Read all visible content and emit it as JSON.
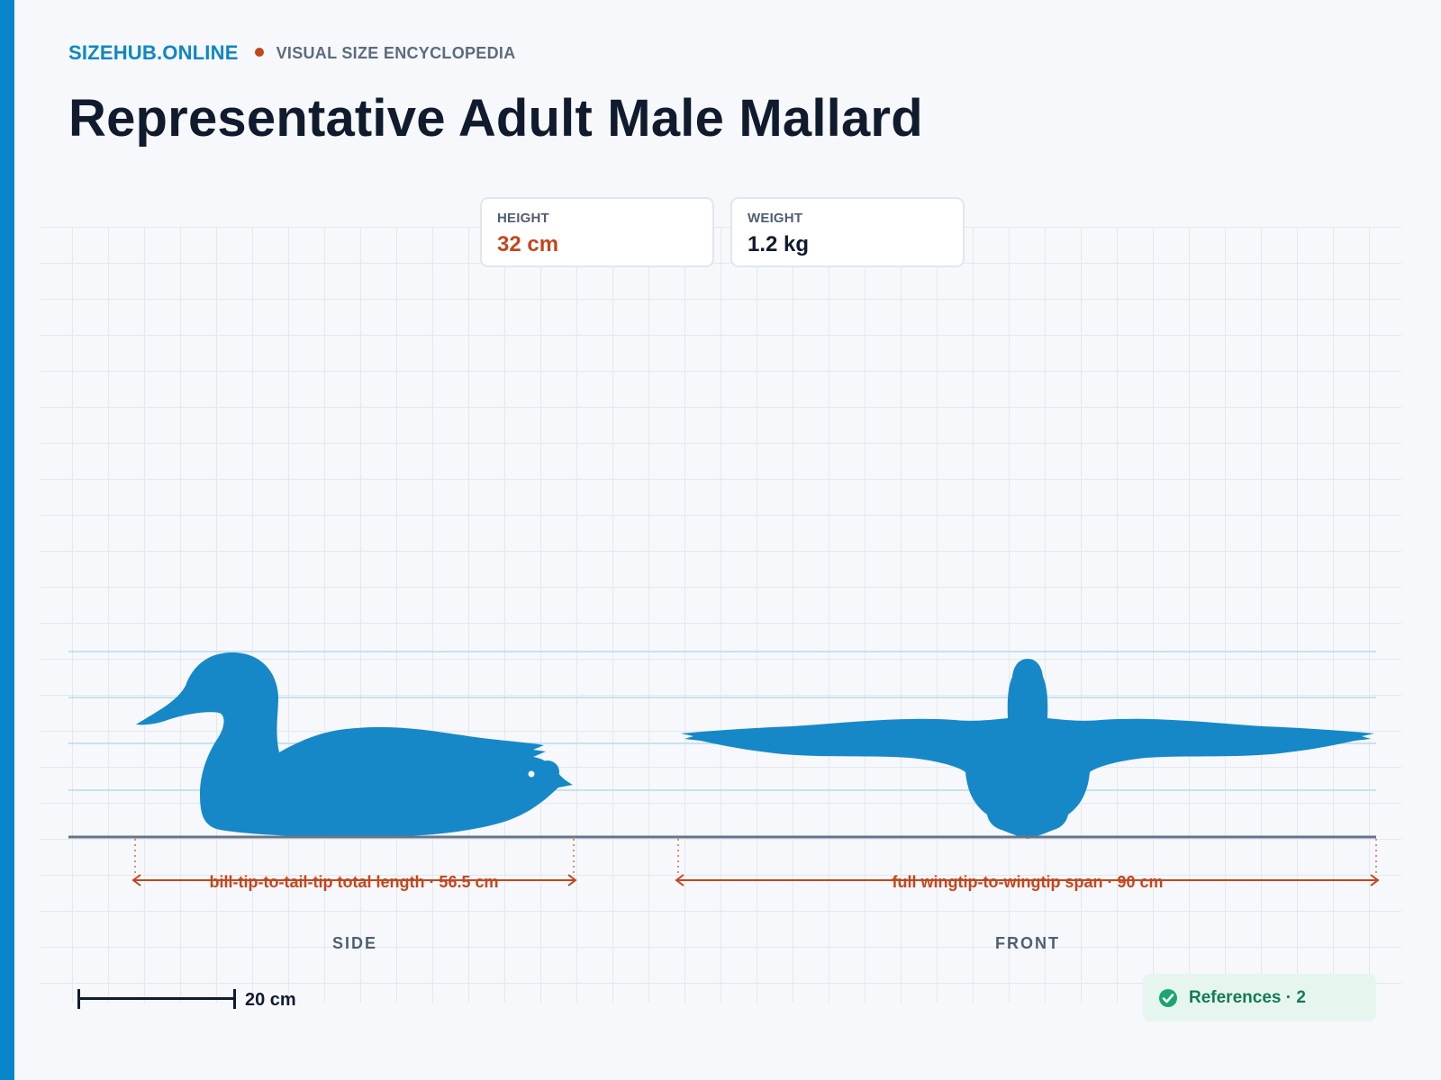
{
  "header": {
    "brand": "SIZEHUB.ONLINE",
    "tagline": "VISUAL SIZE ENCYCLOPEDIA",
    "title": "Representative Adult Male Mallard"
  },
  "stats": [
    {
      "label": "HEIGHT",
      "value": "32 cm"
    },
    {
      "label": "WEIGHT",
      "value": "1.2 kg"
    }
  ],
  "views": {
    "side": {
      "label": "SIDE",
      "dimension": "bill-tip-to-tail-tip total length · 56.5 cm",
      "length_cm": 56.5
    },
    "front": {
      "label": "FRONT",
      "dimension": "full wingtip-to-wingtip span · 90 cm",
      "length_cm": 90
    }
  },
  "scale_bar": {
    "label": "20 cm",
    "length_cm": 20
  },
  "references": {
    "label": "References · 2",
    "count": 2
  },
  "colors": {
    "accent": "#0886c9",
    "silhouette": "#1688c8",
    "dimension": "#c4461c",
    "ground": "#67758a",
    "references_bg": "#e6f6ef",
    "references_text": "#157a58"
  },
  "icons": {
    "references": "check-circle-icon"
  }
}
